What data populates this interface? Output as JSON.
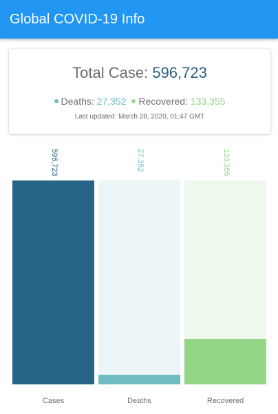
{
  "app": {
    "title": "Global COVID-19 Info"
  },
  "summary": {
    "total_label": "Total Case:",
    "total_value": "596,723",
    "deaths_label": "Deaths:",
    "deaths_value": "27,352",
    "recovered_label": "Recovered:",
    "recovered_value": "133,355",
    "last_updated": "Last updated: March 28, 2020, 01:47 GMT"
  },
  "colors": {
    "app_bar": "#2196f3",
    "cases": "#286488",
    "cases_track": "#286488",
    "deaths": "#6fbcc3",
    "deaths_track": "#ecf5f7",
    "recovered": "#93d685",
    "recovered_track": "#eef8ec"
  },
  "chart_data": {
    "type": "bar",
    "title": "",
    "categories": [
      "Cases",
      "Deaths",
      "Recovered"
    ],
    "values": [
      596723,
      27352,
      133355
    ],
    "value_labels": [
      "596,723",
      "27,352",
      "133,355"
    ],
    "ylim": [
      0,
      596723
    ],
    "xlabel": "",
    "ylabel": ""
  }
}
